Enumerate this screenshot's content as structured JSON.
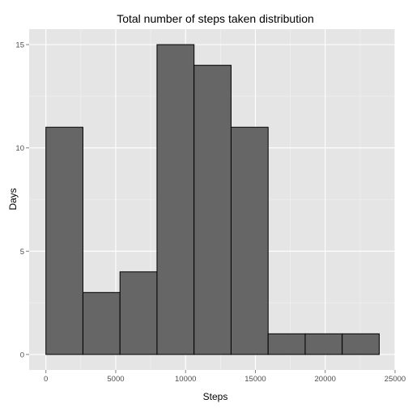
{
  "chart_data": {
    "type": "bar",
    "title": "Total number of steps taken distribution",
    "xlabel": "Steps",
    "ylabel": "Days",
    "bin_width": 2652,
    "bins": [
      {
        "start": 0,
        "end": 2652,
        "count": 11
      },
      {
        "start": 2652,
        "end": 5304,
        "count": 3
      },
      {
        "start": 5304,
        "end": 7956,
        "count": 4
      },
      {
        "start": 7956,
        "end": 10608,
        "count": 15
      },
      {
        "start": 10608,
        "end": 13260,
        "count": 14
      },
      {
        "start": 13260,
        "end": 15912,
        "count": 11
      },
      {
        "start": 15912,
        "end": 18564,
        "count": 1
      },
      {
        "start": 18564,
        "end": 21216,
        "count": 1
      },
      {
        "start": 21216,
        "end": 23868,
        "count": 1
      }
    ],
    "xlim": [
      -1200,
      25000
    ],
    "ylim": [
      -0.75,
      15.75
    ],
    "x_ticks": [
      0,
      5000,
      10000,
      15000,
      20000,
      25000
    ],
    "x_tick_labels": [
      "0",
      "5000",
      "10000",
      "15000",
      "20000",
      "25000"
    ],
    "y_ticks": [
      0,
      5,
      10,
      15
    ],
    "y_tick_labels": [
      "0",
      "5",
      "10",
      "15"
    ],
    "grid": true,
    "colors": {
      "panel_background": "#e5e5e5",
      "grid_major": "#ffffff",
      "grid_minor": "#f2f2f2",
      "bar_fill": "#666666",
      "bar_stroke": "#000000"
    }
  }
}
